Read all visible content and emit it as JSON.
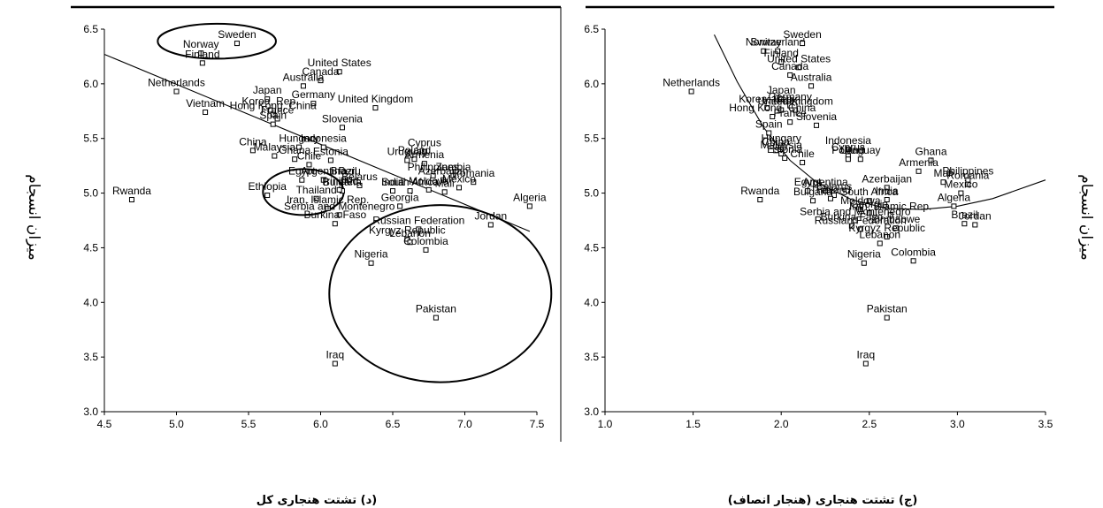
{
  "chart_data": [
    {
      "type": "scatter",
      "caption": "(د) تشتت هنجاری کل",
      "ylabel": "میزان انسجام",
      "xlim": [
        4.5,
        7.5
      ],
      "ylim": [
        3.0,
        6.5
      ],
      "x_ticks": [
        "4.5",
        "5.0",
        "5.5",
        "6.0",
        "6.5",
        "7.0",
        "7.5"
      ],
      "y_ticks": [
        "3.0",
        "3.5",
        "4.0",
        "4.5",
        "5.0",
        "5.5",
        "6.0",
        "6.5"
      ],
      "trendline": {
        "type": "linear",
        "x": [
          4.5,
          7.45
        ],
        "y": [
          6.27,
          4.65
        ]
      },
      "ellipses": [
        {
          "cx": 5.28,
          "cy": 6.39,
          "rx": 0.41,
          "ry": 0.16
        },
        {
          "cx": 5.88,
          "cy": 5.01,
          "rx": 0.28,
          "ry": 0.21
        },
        {
          "cx": 6.83,
          "cy": 4.08,
          "rx": 0.77,
          "ry": 0.81
        }
      ],
      "points": [
        {
          "label": "Sweden",
          "x": 5.42,
          "y": 6.37
        },
        {
          "label": "Norway",
          "x": 5.17,
          "y": 6.28
        },
        {
          "label": "Finland",
          "x": 5.18,
          "y": 6.19
        },
        {
          "label": "United States",
          "x": 6.13,
          "y": 6.11
        },
        {
          "label": "Canada",
          "x": 6.0,
          "y": 6.03
        },
        {
          "label": "Australia",
          "x": 5.88,
          "y": 5.98
        },
        {
          "label": "Netherlands",
          "x": 5.0,
          "y": 5.93
        },
        {
          "label": "Japan",
          "x": 5.63,
          "y": 5.86
        },
        {
          "label": "Germany",
          "x": 5.95,
          "y": 5.82
        },
        {
          "label": "United Kingdom",
          "x": 6.38,
          "y": 5.78
        },
        {
          "label": "Korea, Rep.",
          "x": 5.65,
          "y": 5.76
        },
        {
          "label": "Vietnam",
          "x": 5.2,
          "y": 5.74
        },
        {
          "label": "Hong Kong, China",
          "x": 5.67,
          "y": 5.72
        },
        {
          "label": "France",
          "x": 5.7,
          "y": 5.68
        },
        {
          "label": "Spain",
          "x": 5.67,
          "y": 5.63
        },
        {
          "label": "Slovenia",
          "x": 6.15,
          "y": 5.6
        },
        {
          "label": "Indonesia",
          "x": 6.02,
          "y": 5.42
        },
        {
          "label": "Hungary",
          "x": 5.85,
          "y": 5.42
        },
        {
          "label": "China",
          "x": 5.53,
          "y": 5.39
        },
        {
          "label": "Malaysia",
          "x": 5.68,
          "y": 5.34
        },
        {
          "label": "Ghana",
          "x": 5.82,
          "y": 5.31
        },
        {
          "label": "Estonia",
          "x": 6.07,
          "y": 5.3
        },
        {
          "label": "Chile",
          "x": 5.92,
          "y": 5.26
        },
        {
          "label": "Cyprus",
          "x": 6.72,
          "y": 5.38
        },
        {
          "label": "Uruguay",
          "x": 6.6,
          "y": 5.3
        },
        {
          "label": "Poland",
          "x": 6.65,
          "y": 5.31
        },
        {
          "label": "Armenia",
          "x": 6.72,
          "y": 5.27
        },
        {
          "label": "Philippines",
          "x": 6.78,
          "y": 5.16
        },
        {
          "label": "Zambia",
          "x": 6.92,
          "y": 5.16
        },
        {
          "label": "Azerbaijan",
          "x": 6.85,
          "y": 5.12
        },
        {
          "label": "Romania",
          "x": 7.06,
          "y": 5.1
        },
        {
          "label": "Mexico",
          "x": 6.96,
          "y": 5.05
        },
        {
          "label": "Moldova",
          "x": 6.75,
          "y": 5.03
        },
        {
          "label": "Mali",
          "x": 6.86,
          "y": 5.01
        },
        {
          "label": "South Africa",
          "x": 6.62,
          "y": 5.02
        },
        {
          "label": "India",
          "x": 6.5,
          "y": 5.02
        },
        {
          "label": "Algeria",
          "x": 7.45,
          "y": 4.88
        },
        {
          "label": "Rwanda",
          "x": 4.69,
          "y": 4.94
        },
        {
          "label": "Ethiopia",
          "x": 5.63,
          "y": 4.98
        },
        {
          "label": "Egypt",
          "x": 5.87,
          "y": 5.12
        },
        {
          "label": "Argentina",
          "x": 6.02,
          "y": 5.12
        },
        {
          "label": "Brazil",
          "x": 6.16,
          "y": 5.12
        },
        {
          "label": "Peru",
          "x": 6.2,
          "y": 5.12
        },
        {
          "label": "Belarus",
          "x": 6.27,
          "y": 5.07
        },
        {
          "label": "Bulgaria",
          "x": 6.15,
          "y": 5.02
        },
        {
          "label": "Trinidad",
          "x": 6.13,
          "y": 5.03
        },
        {
          "label": "Thailand",
          "x": 5.97,
          "y": 4.95
        },
        {
          "label": "Iran, Islamic Rep.",
          "x": 6.05,
          "y": 4.86
        },
        {
          "label": "Georgia",
          "x": 6.55,
          "y": 4.88
        },
        {
          "label": "Serbia and Montenegro",
          "x": 6.13,
          "y": 4.8
        },
        {
          "label": "Burkina Faso",
          "x": 6.1,
          "y": 4.72
        },
        {
          "label": "Jordan",
          "x": 7.18,
          "y": 4.71
        },
        {
          "label": "Russian Federation",
          "x": 6.68,
          "y": 4.67
        },
        {
          "label": "Kyrgyz Republic",
          "x": 6.6,
          "y": 4.58
        },
        {
          "label": "Lebanon",
          "x": 6.62,
          "y": 4.55
        },
        {
          "label": "Colombia",
          "x": 6.73,
          "y": 4.48
        },
        {
          "label": "Nigeria",
          "x": 6.35,
          "y": 4.36
        },
        {
          "label": "Pakistan",
          "x": 6.8,
          "y": 3.86
        },
        {
          "label": "Iraq",
          "x": 6.1,
          "y": 3.44
        }
      ]
    },
    {
      "type": "scatter",
      "caption": "(ج) تشتت هنجاری (هنجار انصاف)",
      "ylabel": "میزان انسجام",
      "xlim": [
        1.0,
        3.5
      ],
      "ylim": [
        3.0,
        6.5
      ],
      "x_ticks": [
        "1.0",
        "1.5",
        "2.0",
        "2.5",
        "3.0",
        "3.5"
      ],
      "y_ticks": [
        "3.0",
        "3.5",
        "4.0",
        "4.5",
        "5.0",
        "5.5",
        "6.0",
        "6.5"
      ],
      "trendline": {
        "type": "polynomial",
        "x": [
          1.62,
          1.75,
          1.9,
          2.05,
          2.2,
          2.4,
          2.6,
          2.8,
          3.0,
          3.2,
          3.5
        ],
        "y": [
          6.45,
          6.02,
          5.6,
          5.3,
          5.1,
          4.94,
          4.86,
          4.85,
          4.88,
          4.95,
          5.12
        ]
      },
      "points": [
        {
          "label": "Switzerland",
          "x": 1.98,
          "y": 6.3
        },
        {
          "label": "Sweden",
          "x": 2.12,
          "y": 6.37
        },
        {
          "label": "Norway",
          "x": 1.9,
          "y": 6.3
        },
        {
          "label": "Finland",
          "x": 2.0,
          "y": 6.2
        },
        {
          "label": "United States",
          "x": 2.1,
          "y": 6.15
        },
        {
          "label": "Canada",
          "x": 2.05,
          "y": 6.08
        },
        {
          "label": "Australia",
          "x": 2.17,
          "y": 5.98
        },
        {
          "label": "Netherlands",
          "x": 1.49,
          "y": 5.93
        },
        {
          "label": "Japan",
          "x": 2.0,
          "y": 5.86
        },
        {
          "label": "Korea, Rep.",
          "x": 1.92,
          "y": 5.78
        },
        {
          "label": "Vietnam",
          "x": 2.0,
          "y": 5.76
        },
        {
          "label": "Germany",
          "x": 2.05,
          "y": 5.8
        },
        {
          "label": "United Kingdom",
          "x": 2.08,
          "y": 5.76
        },
        {
          "label": "Hong Kong, China",
          "x": 1.95,
          "y": 5.7
        },
        {
          "label": "France",
          "x": 2.05,
          "y": 5.65
        },
        {
          "label": "Slovenia",
          "x": 2.2,
          "y": 5.62
        },
        {
          "label": "Spain",
          "x": 1.93,
          "y": 5.55
        },
        {
          "label": "Indonesia",
          "x": 2.38,
          "y": 5.4
        },
        {
          "label": "Hungary",
          "x": 2.0,
          "y": 5.42
        },
        {
          "label": "China",
          "x": 1.97,
          "y": 5.39
        },
        {
          "label": "Malaysia",
          "x": 2.0,
          "y": 5.36
        },
        {
          "label": "Cyprus",
          "x": 2.38,
          "y": 5.34
        },
        {
          "label": "Ghana",
          "x": 2.85,
          "y": 5.3
        },
        {
          "label": "Estonia",
          "x": 2.02,
          "y": 5.32
        },
        {
          "label": "Uruguay",
          "x": 2.45,
          "y": 5.31
        },
        {
          "label": "Poland",
          "x": 2.38,
          "y": 5.31
        },
        {
          "label": "Chile",
          "x": 2.12,
          "y": 5.28
        },
        {
          "label": "Armenia",
          "x": 2.78,
          "y": 5.2
        },
        {
          "label": "Mali",
          "x": 2.92,
          "y": 5.1
        },
        {
          "label": "Philippines",
          "x": 3.06,
          "y": 5.12
        },
        {
          "label": "Romania",
          "x": 3.06,
          "y": 5.08
        },
        {
          "label": "Azerbaijan",
          "x": 2.6,
          "y": 5.05
        },
        {
          "label": "Argentina",
          "x": 2.25,
          "y": 5.02
        },
        {
          "label": "Egypt",
          "x": 2.15,
          "y": 5.02
        },
        {
          "label": "Belarus",
          "x": 2.3,
          "y": 4.98
        },
        {
          "label": "Mexico",
          "x": 3.02,
          "y": 5.0
        },
        {
          "label": "Rwanda",
          "x": 1.88,
          "y": 4.94
        },
        {
          "label": "Bulgaria",
          "x": 2.18,
          "y": 4.93
        },
        {
          "label": "Thailand",
          "x": 2.28,
          "y": 4.95
        },
        {
          "label": "South Africa",
          "x": 2.5,
          "y": 4.93
        },
        {
          "label": "India",
          "x": 2.6,
          "y": 4.94
        },
        {
          "label": "Moldova",
          "x": 2.45,
          "y": 4.85
        },
        {
          "label": "Georgia",
          "x": 2.5,
          "y": 4.82
        },
        {
          "label": "Iran, Islamic Rep.",
          "x": 2.62,
          "y": 4.8
        },
        {
          "label": "Algeria",
          "x": 2.98,
          "y": 4.88
        },
        {
          "label": "Brazil",
          "x": 3.04,
          "y": 4.72
        },
        {
          "label": "Jordan",
          "x": 3.1,
          "y": 4.71
        },
        {
          "label": "Serbia and Montenegro",
          "x": 2.42,
          "y": 4.75
        },
        {
          "label": "Burkina Faso",
          "x": 2.4,
          "y": 4.7
        },
        {
          "label": "Zimbabwe",
          "x": 2.65,
          "y": 4.68
        },
        {
          "label": "Russian Federation",
          "x": 2.45,
          "y": 4.67
        },
        {
          "label": "Kyrgyz Republic",
          "x": 2.6,
          "y": 4.6
        },
        {
          "label": "Lebanon",
          "x": 2.56,
          "y": 4.54
        },
        {
          "label": "Colombia",
          "x": 2.75,
          "y": 4.38
        },
        {
          "label": "Nigeria",
          "x": 2.47,
          "y": 4.36
        },
        {
          "label": "Pakistan",
          "x": 2.6,
          "y": 3.86
        },
        {
          "label": "Iraq",
          "x": 2.48,
          "y": 3.44
        }
      ]
    }
  ]
}
